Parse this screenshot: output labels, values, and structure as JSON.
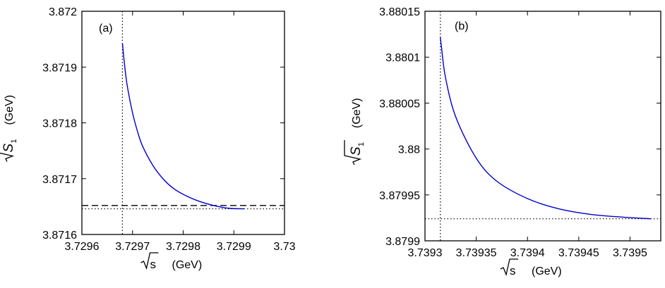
{
  "colors": {
    "curve": "#0000cc",
    "axis": "#000000",
    "background": "#ffffff"
  },
  "chart_data": [
    {
      "type": "line",
      "panel_label": "(a)",
      "xlabel": {
        "sqrt": "s",
        "unit": "(GeV)"
      },
      "ylabel": {
        "sqrt": "S",
        "sub": "1",
        "unit": "(GeV)"
      },
      "xlim": [
        3.7296,
        3.73
      ],
      "ylim": [
        3.8716,
        3.872
      ],
      "xticks": [
        3.7296,
        3.7297,
        3.7298,
        3.7299,
        3.73
      ],
      "xtick_labels": [
        "3.7296",
        "3.7297",
        "3.7298",
        "3.7299",
        "3.73"
      ],
      "yticks": [
        3.8716,
        3.8717,
        3.8718,
        3.8719,
        3.872
      ],
      "ytick_labels": [
        "3.8716",
        "3.8717",
        "3.8718",
        "3.8719",
        "3.872"
      ],
      "grid": false,
      "series": [
        {
          "x": [
            3.72968,
            3.729685,
            3.72969,
            3.7297,
            3.72971,
            3.72972,
            3.72974,
            3.72976,
            3.72978,
            3.7298,
            3.72983,
            3.72986,
            3.72989,
            3.72992
          ],
          "y": [
            3.871943,
            3.871898,
            3.871864,
            3.871818,
            3.871784,
            3.871758,
            3.871724,
            3.8717,
            3.871683,
            3.871672,
            3.87166,
            3.871652,
            3.871647,
            3.871646
          ]
        }
      ],
      "reference_lines": [
        {
          "orientation": "vertical",
          "value": 3.72968,
          "style": "dotted"
        },
        {
          "orientation": "horizontal",
          "value": 3.871646,
          "style": "dotted"
        },
        {
          "orientation": "horizontal",
          "value": 3.871652,
          "style": "dashed"
        }
      ]
    },
    {
      "type": "line",
      "panel_label": "(b)",
      "xlabel": {
        "sqrt": "s",
        "unit": "(GeV)"
      },
      "ylabel": {
        "sqrt": "S",
        "sub": "1",
        "unit": "(GeV)"
      },
      "xlim": [
        3.7393,
        3.73953
      ],
      "ylim": [
        3.8799,
        3.88015
      ],
      "xticks": [
        3.7393,
        3.73935,
        3.7394,
        3.73945,
        3.7395
      ],
      "xtick_labels": [
        "3.7393",
        "3.73935",
        "3.7394",
        "3.73945",
        "3.7395"
      ],
      "yticks": [
        3.8799,
        3.87995,
        3.88,
        3.88005,
        3.8801,
        3.88015
      ],
      "ytick_labels": [
        "3.8799",
        "3.87995",
        "3.88",
        "3.88005",
        "3.8801",
        "3.88015"
      ],
      "grid": false,
      "series": [
        {
          "x": [
            3.739315,
            3.739316,
            3.73932,
            3.73933,
            3.73935,
            3.73937,
            3.7394,
            3.73943,
            3.73946,
            3.73949,
            3.73952
          ],
          "y": [
            3.880122,
            3.880112,
            3.880078,
            3.880035,
            3.87999,
            3.879965,
            3.879946,
            3.879935,
            3.879929,
            3.879926,
            3.879924
          ]
        }
      ],
      "reference_lines": [
        {
          "orientation": "vertical",
          "value": 3.739315,
          "style": "dotted"
        },
        {
          "orientation": "horizontal",
          "value": 3.879924,
          "style": "dotted"
        }
      ]
    }
  ]
}
